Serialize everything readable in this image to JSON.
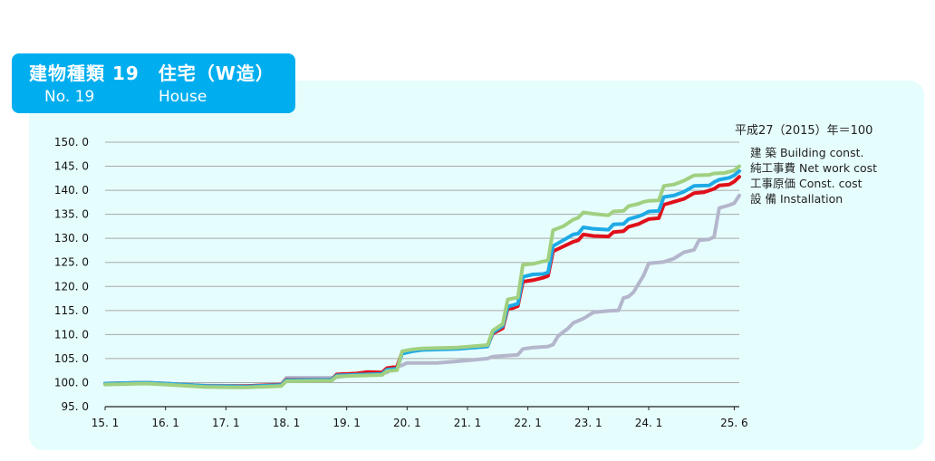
{
  "header": {
    "title_jp": "建物種類 19　住宅（W造）",
    "number_label": "No. 19",
    "title_en": "House"
  },
  "chart_data": {
    "type": "line",
    "base_note": "平成27（2015）年＝100",
    "ylim": [
      95,
      150
    ],
    "y_ticks": [
      "150. 0",
      "145. 0",
      "140. 0",
      "135. 0",
      "130. 0",
      "125. 0",
      "120. 0",
      "115. 0",
      "110. 0",
      "105. 0",
      "100. 0",
      "95. 0"
    ],
    "y_tick_values": [
      150,
      145,
      140,
      135,
      130,
      125,
      120,
      115,
      110,
      105,
      100,
      95
    ],
    "x_ticks": [
      "15. 1",
      "16. 1",
      "17. 1",
      "18. 1",
      "19. 1",
      "20. 1",
      "21. 1",
      "22. 1",
      "23. 1",
      "24. 1",
      "25. 6"
    ],
    "x_tick_months": [
      0,
      12,
      24,
      36,
      48,
      60,
      72,
      84,
      96,
      108,
      125
    ],
    "x_range_months": [
      0,
      126
    ],
    "legend": [
      {
        "label": "建 築  Building const.",
        "color": "#a0d080"
      },
      {
        "label": "純工事費  Net work cost",
        "color": "#1eaae6"
      },
      {
        "label": "工事原価  Const. cost",
        "color": "#e0101a"
      },
      {
        "label": "設 備  Installation",
        "color": "#b4b6cc"
      }
    ],
    "series": [
      {
        "name": "設 備  Installation",
        "color": "#b4b6cc",
        "points": [
          [
            0,
            99.7
          ],
          [
            6,
            99.9
          ],
          [
            12,
            99.7
          ],
          [
            20,
            99.4
          ],
          [
            28,
            99.3
          ],
          [
            35,
            99.6
          ],
          [
            36,
            101.0
          ],
          [
            45,
            101.0
          ],
          [
            48,
            101.4
          ],
          [
            53,
            101.9
          ],
          [
            56,
            102.1
          ],
          [
            57,
            103.0
          ],
          [
            59,
            103.6
          ],
          [
            60,
            104.1
          ],
          [
            66,
            104.1
          ],
          [
            72,
            104.6
          ],
          [
            76,
            105.0
          ],
          [
            77,
            105.4
          ],
          [
            82,
            105.8
          ],
          [
            83,
            107.0
          ],
          [
            85,
            107.3
          ],
          [
            88,
            107.5
          ],
          [
            89,
            107.9
          ],
          [
            90,
            109.7
          ],
          [
            92,
            111.3
          ],
          [
            93,
            112.4
          ],
          [
            95,
            113.3
          ],
          [
            97,
            114.6
          ],
          [
            100,
            114.9
          ],
          [
            102,
            115.0
          ],
          [
            103,
            117.6
          ],
          [
            104,
            117.9
          ],
          [
            105,
            118.8
          ],
          [
            106,
            120.6
          ],
          [
            107,
            122.3
          ],
          [
            108,
            124.8
          ],
          [
            111,
            125.1
          ],
          [
            113,
            125.8
          ],
          [
            115,
            127.1
          ],
          [
            117,
            127.6
          ],
          [
            118,
            129.6
          ],
          [
            120,
            129.8
          ],
          [
            121,
            130.3
          ],
          [
            122,
            136.3
          ],
          [
            124,
            136.9
          ],
          [
            125,
            137.3
          ],
          [
            126,
            138.9
          ]
        ]
      },
      {
        "name": "工事原価  Const. cost",
        "color": "#e0101a",
        "points": [
          [
            0,
            99.8
          ],
          [
            8,
            100.0
          ],
          [
            12,
            99.8
          ],
          [
            20,
            99.3
          ],
          [
            28,
            99.3
          ],
          [
            35,
            99.6
          ],
          [
            36,
            100.6
          ],
          [
            45,
            100.6
          ],
          [
            46,
            101.7
          ],
          [
            50,
            101.9
          ],
          [
            52,
            102.2
          ],
          [
            55,
            102.1
          ],
          [
            56,
            103.0
          ],
          [
            58,
            103.3
          ],
          [
            59,
            106.3
          ],
          [
            61,
            106.6
          ],
          [
            63,
            107.0
          ],
          [
            66,
            107.0
          ],
          [
            70,
            107.2
          ],
          [
            76,
            107.6
          ],
          [
            77,
            110.2
          ],
          [
            79,
            111.3
          ],
          [
            80,
            115.4
          ],
          [
            81,
            115.5
          ],
          [
            82,
            115.9
          ],
          [
            83,
            121.0
          ],
          [
            85,
            121.3
          ],
          [
            87,
            121.8
          ],
          [
            88,
            122.2
          ],
          [
            89,
            127.3
          ],
          [
            91,
            128.3
          ],
          [
            93,
            129.3
          ],
          [
            94,
            129.6
          ],
          [
            95,
            130.8
          ],
          [
            97,
            130.5
          ],
          [
            100,
            130.4
          ],
          [
            101,
            131.3
          ],
          [
            103,
            131.5
          ],
          [
            104,
            132.4
          ],
          [
            106,
            133.0
          ],
          [
            107,
            133.5
          ],
          [
            108,
            134.0
          ],
          [
            110,
            134.2
          ],
          [
            111,
            137.0
          ],
          [
            113,
            137.6
          ],
          [
            115,
            138.2
          ],
          [
            117,
            139.4
          ],
          [
            119,
            139.6
          ],
          [
            121,
            140.3
          ],
          [
            122,
            141.0
          ],
          [
            124,
            141.2
          ],
          [
            125,
            141.8
          ],
          [
            126,
            142.8
          ]
        ]
      },
      {
        "name": "純工事費  Net work cost",
        "color": "#1eaae6",
        "points": [
          [
            0,
            99.8
          ],
          [
            8,
            100.0
          ],
          [
            12,
            99.8
          ],
          [
            20,
            99.3
          ],
          [
            28,
            99.2
          ],
          [
            35,
            99.5
          ],
          [
            36,
            100.5
          ],
          [
            45,
            100.6
          ],
          [
            46,
            101.5
          ],
          [
            52,
            101.7
          ],
          [
            55,
            101.8
          ],
          [
            56,
            102.7
          ],
          [
            58,
            102.9
          ],
          [
            59,
            106.0
          ],
          [
            61,
            106.5
          ],
          [
            63,
            106.8
          ],
          [
            70,
            107.0
          ],
          [
            76,
            107.5
          ],
          [
            77,
            110.4
          ],
          [
            79,
            111.8
          ],
          [
            80,
            115.8
          ],
          [
            82,
            116.4
          ],
          [
            83,
            122.0
          ],
          [
            85,
            122.5
          ],
          [
            87,
            122.6
          ],
          [
            88,
            122.9
          ],
          [
            89,
            128.4
          ],
          [
            91,
            129.6
          ],
          [
            93,
            130.8
          ],
          [
            94,
            131.0
          ],
          [
            95,
            132.3
          ],
          [
            97,
            132.0
          ],
          [
            100,
            131.8
          ],
          [
            101,
            132.9
          ],
          [
            103,
            133.0
          ],
          [
            104,
            134.0
          ],
          [
            106,
            134.6
          ],
          [
            107,
            135.0
          ],
          [
            108,
            135.6
          ],
          [
            110,
            135.7
          ],
          [
            111,
            138.6
          ],
          [
            113,
            138.9
          ],
          [
            115,
            139.7
          ],
          [
            117,
            140.9
          ],
          [
            120,
            141.0
          ],
          [
            121,
            141.7
          ],
          [
            122,
            142.2
          ],
          [
            124,
            142.6
          ],
          [
            125,
            143.1
          ],
          [
            126,
            144.0
          ]
        ]
      },
      {
        "name": "建 築  Building const.",
        "color": "#a0d080",
        "points": [
          [
            0,
            99.6
          ],
          [
            8,
            99.8
          ],
          [
            12,
            99.6
          ],
          [
            20,
            99.1
          ],
          [
            28,
            99.0
          ],
          [
            35,
            99.3
          ],
          [
            36,
            100.3
          ],
          [
            45,
            100.4
          ],
          [
            46,
            101.3
          ],
          [
            52,
            101.5
          ],
          [
            55,
            101.6
          ],
          [
            56,
            102.4
          ],
          [
            58,
            102.6
          ],
          [
            59,
            106.5
          ],
          [
            61,
            106.9
          ],
          [
            63,
            107.1
          ],
          [
            70,
            107.3
          ],
          [
            76,
            107.8
          ],
          [
            77,
            110.8
          ],
          [
            79,
            112.2
          ],
          [
            80,
            117.3
          ],
          [
            82,
            117.7
          ],
          [
            83,
            124.5
          ],
          [
            85,
            124.7
          ],
          [
            87,
            125.2
          ],
          [
            88,
            125.4
          ],
          [
            89,
            131.7
          ],
          [
            91,
            132.5
          ],
          [
            93,
            133.9
          ],
          [
            94,
            134.3
          ],
          [
            95,
            135.4
          ],
          [
            97,
            135.1
          ],
          [
            100,
            134.8
          ],
          [
            101,
            135.6
          ],
          [
            103,
            135.7
          ],
          [
            104,
            136.7
          ],
          [
            106,
            137.2
          ],
          [
            107,
            137.6
          ],
          [
            108,
            137.8
          ],
          [
            110,
            137.9
          ],
          [
            111,
            140.9
          ],
          [
            113,
            141.2
          ],
          [
            115,
            142.0
          ],
          [
            117,
            143.1
          ],
          [
            120,
            143.2
          ],
          [
            121,
            143.5
          ],
          [
            123,
            143.6
          ],
          [
            125,
            144.1
          ],
          [
            126,
            145.0
          ]
        ]
      }
    ]
  }
}
